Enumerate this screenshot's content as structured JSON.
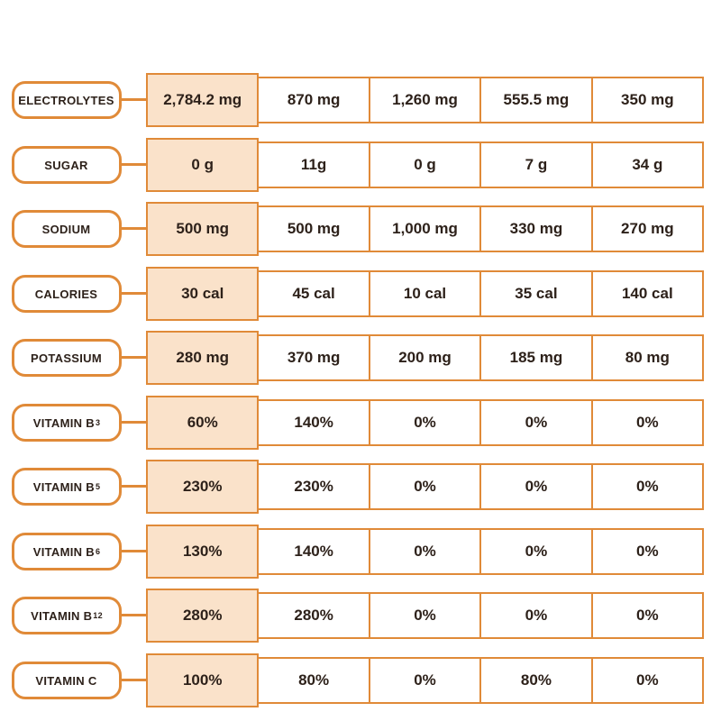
{
  "colors": {
    "accent": "#E08A38",
    "highlight": "#FAE2CA",
    "text": "#2D211A",
    "background": "#FFFFFF"
  },
  "chart_data": {
    "type": "table",
    "num_columns": 5,
    "highlighted_column_index": 0,
    "legend_position": "none",
    "rows": [
      {
        "label": "ELECTROLYTES",
        "label_sub": "",
        "values": [
          "2,784.2 mg",
          "870 mg",
          "1,260 mg",
          "555.5 mg",
          "350 mg"
        ]
      },
      {
        "label": "SUGAR",
        "label_sub": "",
        "values": [
          "0 g",
          "11g",
          "0 g",
          "7 g",
          "34 g"
        ]
      },
      {
        "label": "SODIUM",
        "label_sub": "",
        "values": [
          "500 mg",
          "500 mg",
          "1,000 mg",
          "330 mg",
          "270 mg"
        ]
      },
      {
        "label": "CALORIES",
        "label_sub": "",
        "values": [
          "30 cal",
          "45 cal",
          "10 cal",
          "35 cal",
          "140 cal"
        ]
      },
      {
        "label": "POTASSIUM",
        "label_sub": "",
        "values": [
          "280 mg",
          "370 mg",
          "200 mg",
          "185 mg",
          "80 mg"
        ]
      },
      {
        "label": "VITAMIN B",
        "label_sub": "3",
        "values": [
          "60%",
          "140%",
          "0%",
          "0%",
          "0%"
        ]
      },
      {
        "label": "VITAMIN B",
        "label_sub": "5",
        "values": [
          "230%",
          "230%",
          "0%",
          "0%",
          "0%"
        ]
      },
      {
        "label": "VITAMIN B",
        "label_sub": "6",
        "values": [
          "130%",
          "140%",
          "0%",
          "0%",
          "0%"
        ]
      },
      {
        "label": "VITAMIN B",
        "label_sub": "12",
        "values": [
          "280%",
          "280%",
          "0%",
          "0%",
          "0%"
        ]
      },
      {
        "label": "VITAMIN C",
        "label_sub": "",
        "values": [
          "100%",
          "80%",
          "0%",
          "80%",
          "0%"
        ]
      }
    ]
  }
}
